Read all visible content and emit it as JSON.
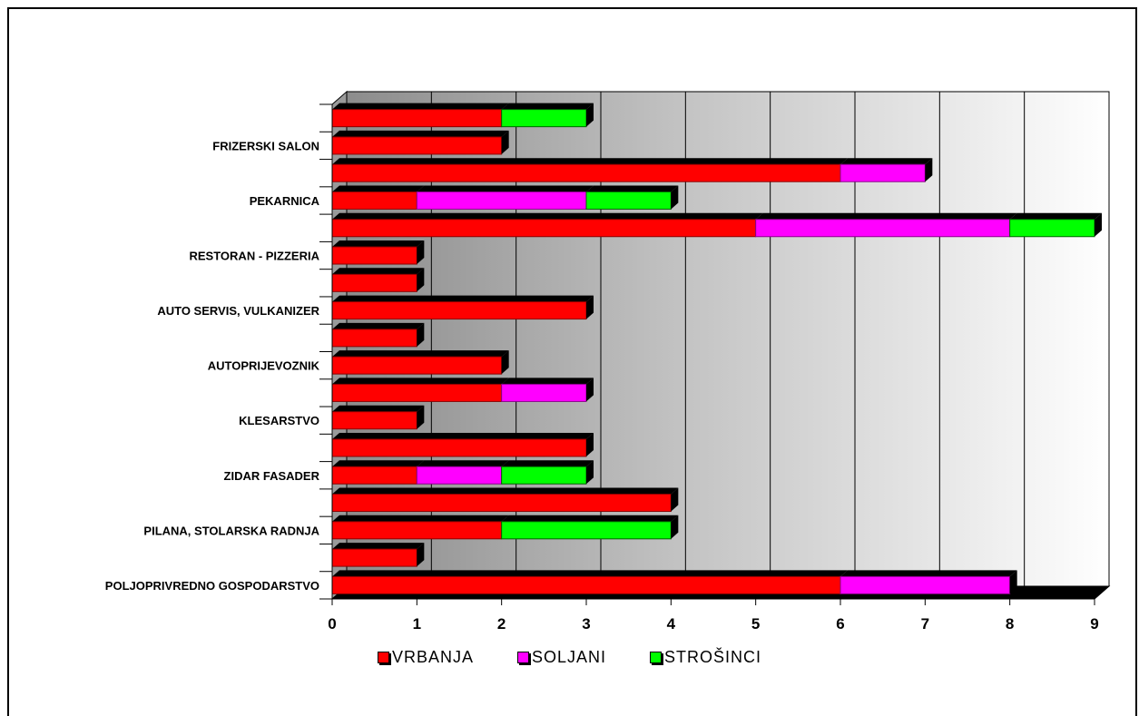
{
  "chart_data": {
    "type": "bar",
    "orientation": "horizontal",
    "stacked": true,
    "categories": [
      "POLJOPRIVREDNO GOSPODARSTVO",
      "",
      "PILANA, STOLARSKA RADNJA",
      "",
      "ZIDAR FASADER",
      "",
      "KLESARSTVO",
      "",
      "AUTOPRIJEVOZNIK",
      "",
      "AUTO SERVIS, VULKANIZER",
      "",
      "RESTORAN - PIZZERIA",
      "",
      "PEKARNICA",
      "",
      "FRIZERSKI SALON",
      ""
    ],
    "series": [
      {
        "name": "VRBANJA",
        "color": "#ff0000",
        "values": [
          6,
          1,
          2,
          4,
          1,
          3,
          1,
          2,
          2,
          1,
          3,
          1,
          1,
          5,
          1,
          6,
          2,
          2
        ]
      },
      {
        "name": "SOLJANI",
        "color": "#ff00ff",
        "values": [
          2,
          0,
          0,
          0,
          1,
          0,
          0,
          1,
          0,
          0,
          0,
          0,
          0,
          3,
          2,
          1,
          0,
          0
        ]
      },
      {
        "name": "STROŠINCI",
        "color": "#00ff00",
        "values": [
          0,
          0,
          2,
          0,
          1,
          0,
          0,
          0,
          0,
          0,
          0,
          0,
          0,
          1,
          1,
          0,
          0,
          1
        ]
      }
    ],
    "xlim": [
      0,
      9
    ],
    "x_ticks": [
      "0",
      "1",
      "2",
      "3",
      "4",
      "5",
      "6",
      "7",
      "8",
      "9"
    ],
    "grid": true,
    "legend_position": "bottom"
  }
}
